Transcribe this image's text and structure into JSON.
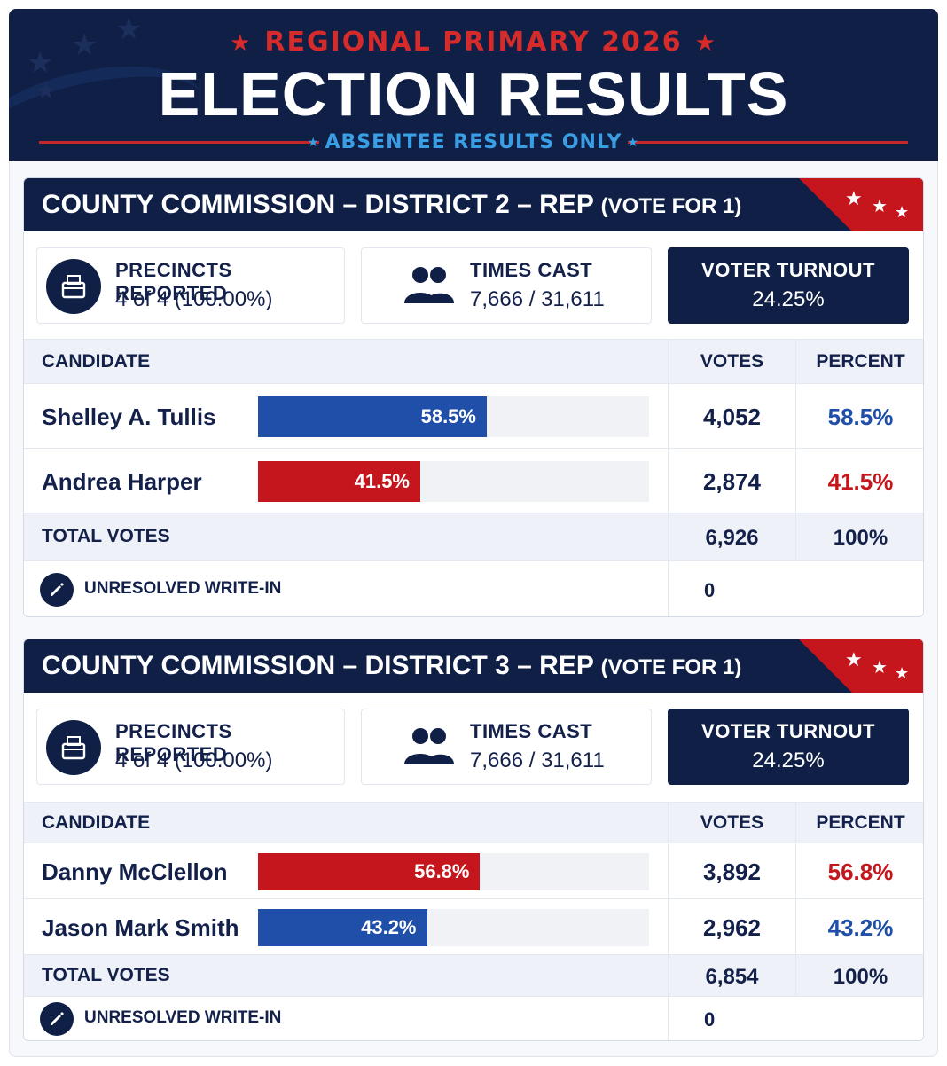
{
  "header": {
    "supertitle": "REGIONAL PRIMARY 2026",
    "title": "ELECTION RESULTS",
    "subtitle": "ABSENTEE RESULTS ONLY"
  },
  "colors": {
    "navy": "#0f1f45",
    "red": "#c4161c",
    "blue": "#1f4fa8",
    "accent_light_blue": "#3a9ee4"
  },
  "races": [
    {
      "title": "COUNTY COMMISSION – DISTRICT 2 – REP",
      "vote_for": "(VOTE FOR 1)",
      "precincts_label": "PRECINCTS REPORTED",
      "precincts_value": "4 of 4 (100.00%)",
      "times_cast_label": "TIMES CAST",
      "times_cast_value": "7,666 / 31,611",
      "turnout_label": "VOTER TURNOUT",
      "turnout_value": "24.25%",
      "columns": {
        "candidate": "CANDIDATE",
        "votes": "VOTES",
        "percent": "PERCENT"
      },
      "candidates": [
        {
          "name": "Shelley A. Tullis",
          "votes": "4,052",
          "percent": "58.5%",
          "share": 0.585,
          "color": "blue"
        },
        {
          "name": "Andrea Harper",
          "votes": "2,874",
          "percent": "41.5%",
          "share": 0.415,
          "color": "red"
        }
      ],
      "total_label": "TOTAL VOTES",
      "total_votes": "6,926",
      "total_percent": "100%",
      "writein_label": "UNRESOLVED WRITE-IN",
      "writein_votes": "0"
    },
    {
      "title": "COUNTY COMMISSION – DISTRICT 3 – REP",
      "vote_for": "(VOTE FOR 1)",
      "precincts_label": "PRECINCTS REPORTED",
      "precincts_value": "4 of 4 (100.00%)",
      "times_cast_label": "TIMES CAST",
      "times_cast_value": "7,666 / 31,611",
      "turnout_label": "VOTER TURNOUT",
      "turnout_value": "24.25%",
      "columns": {
        "candidate": "CANDIDATE",
        "votes": "VOTES",
        "percent": "PERCENT"
      },
      "candidates": [
        {
          "name": "Danny McClellon",
          "votes": "3,892",
          "percent": "56.8%",
          "share": 0.568,
          "color": "red"
        },
        {
          "name": "Jason Mark Smith",
          "votes": "2,962",
          "percent": "43.2%",
          "share": 0.432,
          "color": "blue"
        }
      ],
      "total_label": "TOTAL VOTES",
      "total_votes": "6,854",
      "total_percent": "100%",
      "writein_label": "UNRESOLVED WRITE-IN",
      "writein_votes": "0"
    }
  ]
}
